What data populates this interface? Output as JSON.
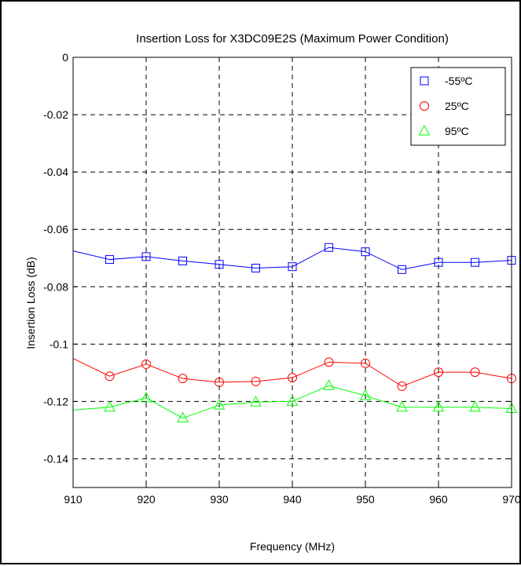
{
  "chart_data": {
    "type": "line",
    "title": "Insertion Loss for X3DC09E2S (Maximum Power Condition)",
    "xlabel": "Frequency (MHz)",
    "ylabel": "Insertion Loss (dB)",
    "xlim": [
      910,
      970
    ],
    "ylim": [
      -0.15,
      0
    ],
    "xticks": [
      910,
      920,
      930,
      940,
      950,
      960,
      970
    ],
    "yticks": [
      0,
      -0.02,
      -0.04,
      -0.06,
      -0.08,
      -0.1,
      -0.12,
      -0.14
    ],
    "ytick_labels": [
      "0",
      "-0.02",
      "-0.04",
      "-0.06",
      "-0.08",
      "-0.1",
      "-0.12",
      "-0.14"
    ],
    "grid": true,
    "legend_position": "top-right",
    "x": [
      910,
      915,
      920,
      925,
      930,
      935,
      940,
      945,
      950,
      955,
      960,
      965,
      970
    ],
    "series": [
      {
        "name": "-55ºC",
        "color": "#0000ff",
        "marker": "square",
        "values": [
          -0.0675,
          -0.0705,
          -0.0695,
          -0.071,
          -0.0722,
          -0.0735,
          -0.073,
          -0.0663,
          -0.0678,
          -0.074,
          -0.0715,
          -0.0715,
          -0.0708
        ]
      },
      {
        "name": "25ºC",
        "color": "#ff0000",
        "marker": "circle",
        "values": [
          -0.105,
          -0.1112,
          -0.107,
          -0.112,
          -0.1133,
          -0.113,
          -0.1117,
          -0.1063,
          -0.1067,
          -0.1147,
          -0.1098,
          -0.1098,
          -0.112
        ]
      },
      {
        "name": "95ºC",
        "color": "#00ff00",
        "marker": "triangle",
        "values": [
          -0.123,
          -0.122,
          -0.1188,
          -0.1258,
          -0.1213,
          -0.1202,
          -0.12,
          -0.1145,
          -0.118,
          -0.122,
          -0.122,
          -0.122,
          -0.1225
        ]
      }
    ]
  }
}
